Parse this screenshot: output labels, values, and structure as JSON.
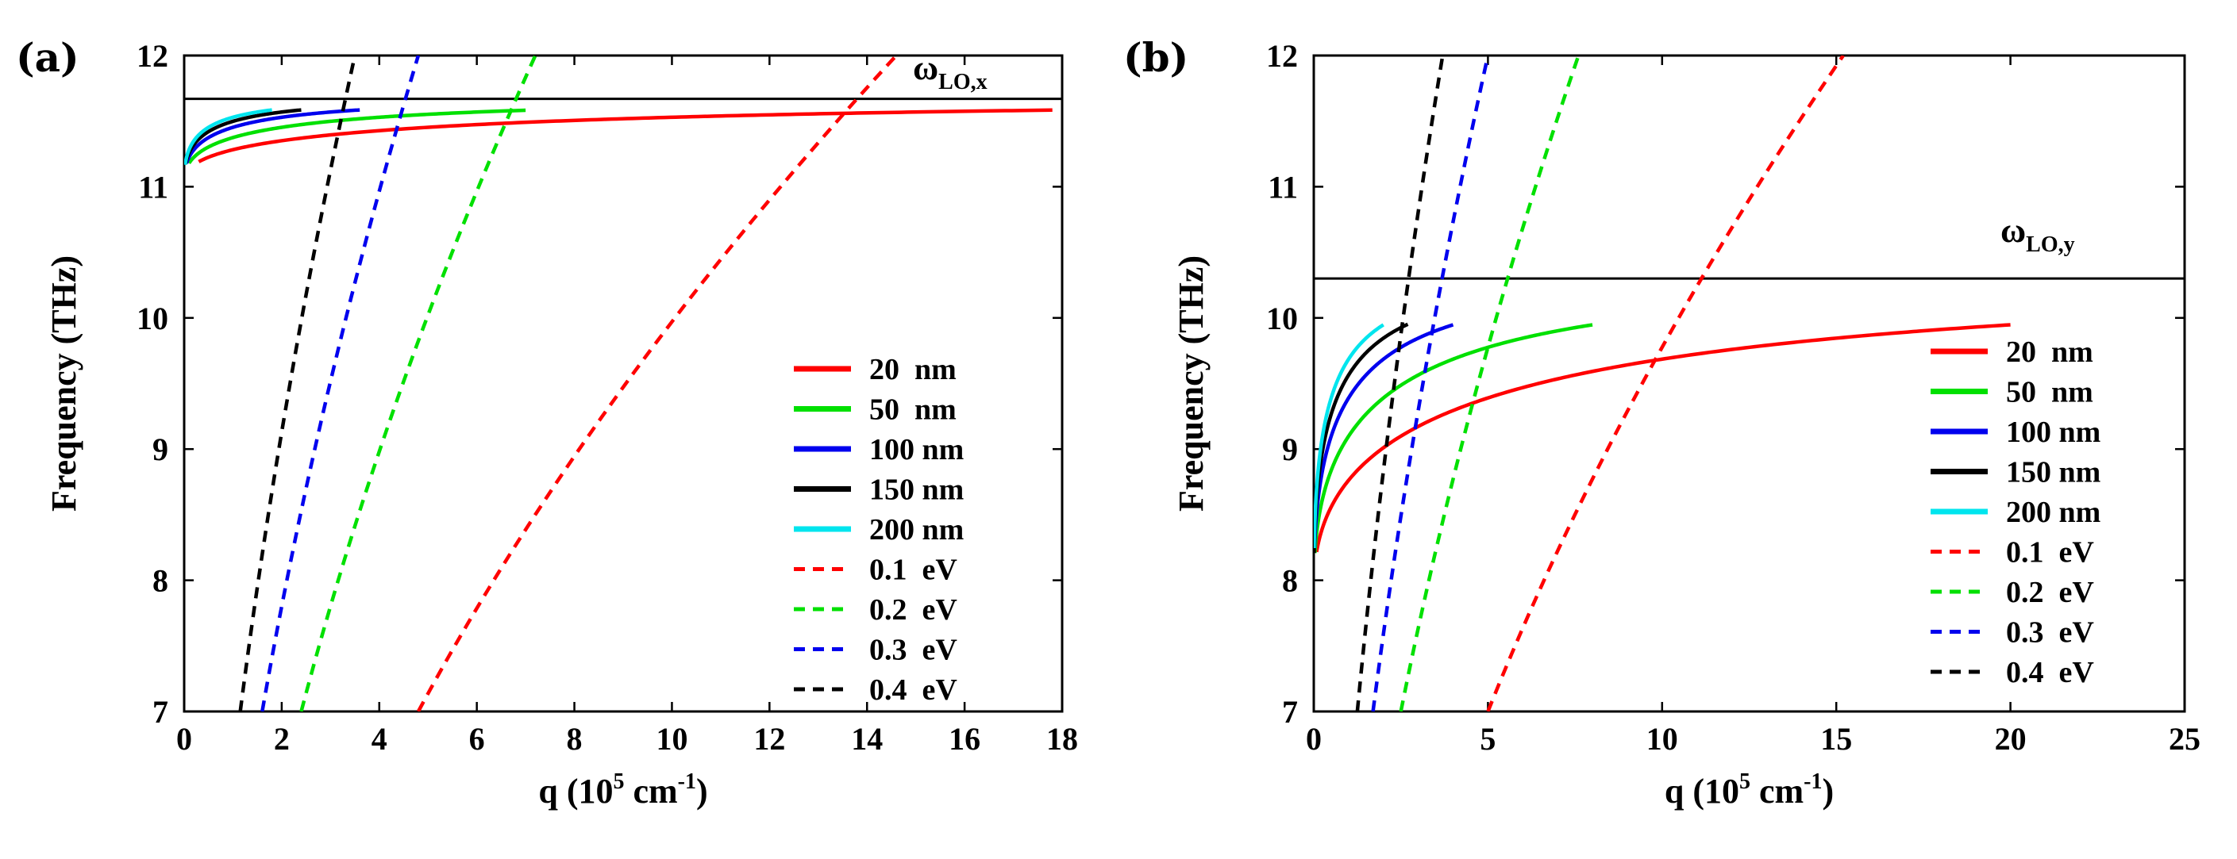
{
  "chart_data": [
    {
      "type": "line",
      "panel_label": "(a)",
      "xlabel": "q (10",
      "xlabel_sup": "5",
      "xlabel_mid": " cm",
      "xlabel_sup2": "-1",
      "xlabel_end": ")",
      "ylabel": "Frequency (THz)",
      "xlim": [
        0,
        18
      ],
      "ylim": [
        7,
        12
      ],
      "xticks": [
        0,
        2,
        4,
        6,
        8,
        10,
        12,
        14,
        16,
        18
      ],
      "yticks": [
        7,
        8,
        9,
        10,
        11,
        12
      ],
      "lo_line": {
        "value": 11.67,
        "label": "ω",
        "sub": "LO,x"
      },
      "w_TO": 11.05,
      "legend_position": "right",
      "series": [
        {
          "name": "20  nm",
          "style": "solid",
          "color": "#ff0000",
          "x_start": 0.3,
          "x_end": 17.8
        },
        {
          "name": "50  nm",
          "style": "solid",
          "color": "#00e000",
          "x_start": 0.1,
          "x_end": 7.0
        },
        {
          "name": "100 nm",
          "style": "solid",
          "color": "#0000ee",
          "x_start": 0.05,
          "x_end": 3.6
        },
        {
          "name": "150 nm",
          "style": "solid",
          "color": "#000000",
          "x_start": 0.03,
          "x_end": 2.4
        },
        {
          "name": "200 nm",
          "style": "solid",
          "color": "#00e5ee",
          "x_start": 0.02,
          "x_end": 1.8
        },
        {
          "name": "0.1  eV",
          "style": "dashed",
          "color": "#ff0000",
          "x_at_ymin": 4.8,
          "x_at_ymax": 14.6
        },
        {
          "name": "0.2  eV",
          "style": "dashed",
          "color": "#00e000",
          "x_at_ymin": 2.4,
          "x_at_ymax": 7.2
        },
        {
          "name": "0.3  eV",
          "style": "dashed",
          "color": "#0000ee",
          "x_at_ymin": 1.6,
          "x_at_ymax": 4.8
        },
        {
          "name": "0.4  eV",
          "style": "dashed",
          "color": "#000000",
          "x_at_ymin": 1.15,
          "x_at_ymax": 3.5
        }
      ]
    },
    {
      "type": "line",
      "panel_label": "(b)",
      "xlabel": "q (10",
      "xlabel_sup": "5",
      "xlabel_mid": " cm",
      "xlabel_sup2": "-1",
      "xlabel_end": ")",
      "ylabel": "Frequency (THz)",
      "xlim": [
        0,
        25
      ],
      "ylim": [
        7,
        12
      ],
      "xticks": [
        0,
        5,
        10,
        15,
        20,
        25
      ],
      "yticks": [
        7,
        8,
        9,
        10,
        11,
        12
      ],
      "lo_line": {
        "value": 10.3,
        "label": "ω",
        "sub": "LO,y"
      },
      "w_TO": 7.95,
      "legend_position": "right",
      "series": [
        {
          "name": "20  nm",
          "style": "solid",
          "color": "#ff0000",
          "x_start": 0.08,
          "x_end": 20.0
        },
        {
          "name": "50  nm",
          "style": "solid",
          "color": "#00e000",
          "x_start": 0.03,
          "x_end": 8.0
        },
        {
          "name": "100 nm",
          "style": "solid",
          "color": "#0000ee",
          "x_start": 0.02,
          "x_end": 4.0
        },
        {
          "name": "150 nm",
          "style": "solid",
          "color": "#000000",
          "x_start": 0.01,
          "x_end": 2.7
        },
        {
          "name": "200 nm",
          "style": "solid",
          "color": "#00e5ee",
          "x_start": 0.01,
          "x_end": 2.0
        },
        {
          "name": "0.1  eV",
          "style": "dashed",
          "color": "#ff0000",
          "x_at_ymin": 5.0,
          "x_at_ymax": 15.2
        },
        {
          "name": "0.2  eV",
          "style": "dashed",
          "color": "#00e000",
          "x_at_ymin": 2.5,
          "x_at_ymax": 7.6
        },
        {
          "name": "0.3  eV",
          "style": "dashed",
          "color": "#0000ee",
          "x_at_ymin": 1.7,
          "x_at_ymax": 5.0
        },
        {
          "name": "0.4  eV",
          "style": "dashed",
          "color": "#000000",
          "x_at_ymin": 1.25,
          "x_at_ymax": 3.7
        }
      ]
    }
  ]
}
